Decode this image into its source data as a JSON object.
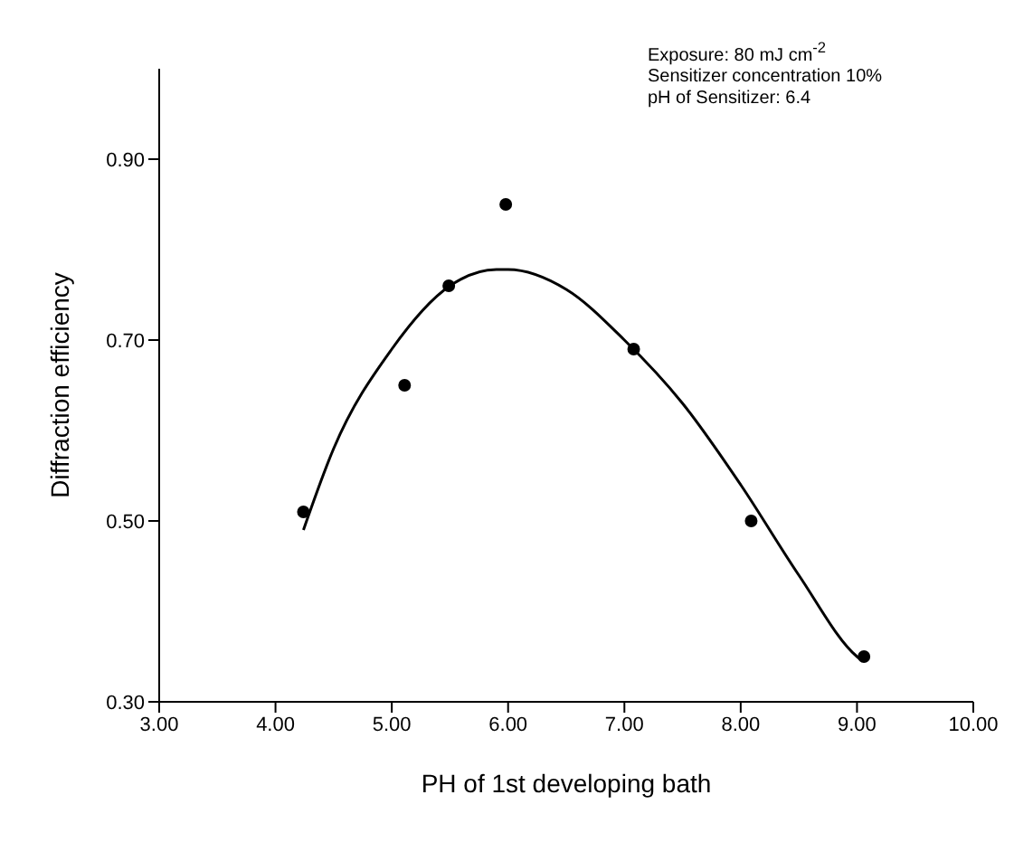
{
  "chart_data": {
    "type": "scatter",
    "xlabel": "PH of 1st developing bath",
    "ylabel": "Diffraction efficiency",
    "annotations": [
      "Exposure: 80 mJ cm$^{-2}$",
      "Sensitizer concentration 10%",
      "pH of Sensitizer: 6.4"
    ],
    "series": [
      {
        "color": "#000000",
        "marker": "circle",
        "x": [
          4.24,
          5.11,
          5.49,
          5.98,
          7.08,
          8.09,
          9.06
        ],
        "values": [
          0.51,
          0.65,
          0.76,
          0.85,
          0.69,
          0.5,
          0.35
        ]
      },
      {
        "type": "line",
        "color": "#000000",
        "marker": "none",
        "line_style": "solid",
        "x": [
          4.24,
          4.5,
          5.0,
          5.5,
          5.9,
          6.0,
          6.5,
          7.0,
          7.5,
          8.0,
          8.5,
          9.0,
          9.05
        ],
        "values": [
          0.49,
          0.58,
          0.69,
          0.76,
          0.778,
          0.778,
          0.756,
          0.7,
          0.63,
          0.54,
          0.44,
          0.35,
          0.345
        ]
      }
    ],
    "xlim": [
      3,
      10
    ],
    "xticks": [
      {
        "value": 3,
        "label": "3.00"
      },
      {
        "value": 4,
        "label": "4.00"
      },
      {
        "value": 5,
        "label": "5.00"
      },
      {
        "value": 6,
        "label": "6.00"
      },
      {
        "value": 7,
        "label": "7.00"
      },
      {
        "value": 8,
        "label": "8.00"
      },
      {
        "value": 9,
        "label": "9.00"
      },
      {
        "value": 10,
        "label": "10.00"
      }
    ],
    "ylim": [
      0.3,
      1.0
    ],
    "yticks": [
      {
        "value": 0.3,
        "label": "0.30"
      },
      {
        "value": 0.5,
        "label": "0.50"
      },
      {
        "value": 0.7,
        "label": "0.70"
      },
      {
        "value": 0.9,
        "label": "0.90"
      }
    ],
    "grid": false,
    "legend": false
  }
}
